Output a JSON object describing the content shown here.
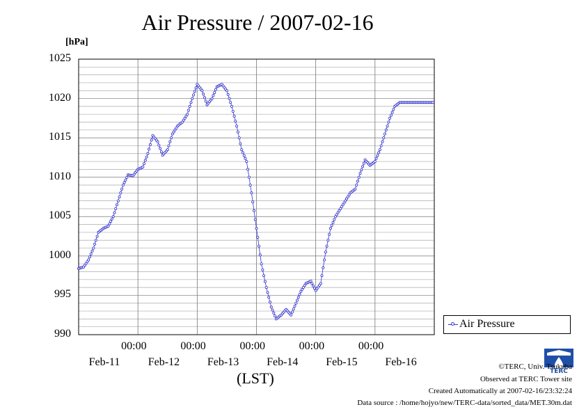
{
  "chart_data": {
    "type": "line",
    "title": "Air Pressure / 2007-02-16",
    "ylabel": "[hPa]",
    "xlabel": "(LST)",
    "ylim": [
      990,
      1025
    ],
    "y_ticks": [
      "1025",
      "1020",
      "1015",
      "1010",
      "1005",
      "1000",
      "995",
      "990"
    ],
    "x_time_ticks": [
      "00:00",
      "00:00",
      "00:00",
      "00:00",
      "00:00"
    ],
    "x_day_ticks": [
      "Feb-11",
      "Feb-12",
      "Feb-13",
      "Feb-14",
      "Feb-15",
      "Feb-16"
    ],
    "grid": true,
    "legend_position": "lower-right outside",
    "series": [
      {
        "name": "Air Pressure",
        "color": "#3333cc",
        "x_hours": [
          0,
          2,
          4,
          6,
          8,
          10,
          12,
          14,
          16,
          18,
          20,
          22,
          24,
          26,
          28,
          30,
          32,
          34,
          36,
          38,
          40,
          42,
          44,
          46,
          48,
          50,
          52,
          54,
          56,
          58,
          60,
          62,
          64,
          66,
          68,
          70,
          72,
          74,
          76,
          78,
          80,
          82,
          84,
          86,
          88,
          90,
          92,
          94,
          96,
          98,
          100,
          102,
          104,
          106,
          108,
          110,
          112,
          114,
          116,
          118,
          120,
          122,
          124,
          126,
          128,
          130,
          132,
          134,
          136,
          138,
          140,
          142,
          143.5
        ],
        "values": [
          998.4,
          998.6,
          999.5,
          1001.0,
          1003.0,
          1003.5,
          1003.8,
          1005.0,
          1007.0,
          1009.0,
          1010.3,
          1010.2,
          1011.0,
          1011.3,
          1013.0,
          1015.3,
          1014.5,
          1012.8,
          1013.5,
          1015.5,
          1016.5,
          1017.0,
          1018.0,
          1020.0,
          1021.8,
          1021.0,
          1019.2,
          1020.0,
          1021.5,
          1021.8,
          1021.0,
          1019.0,
          1016.5,
          1013.5,
          1012.0,
          1008.0,
          1003.5,
          999.0,
          996.0,
          993.5,
          992.0,
          992.5,
          993.2,
          992.5,
          994.0,
          995.5,
          996.5,
          996.8,
          995.6,
          996.5,
          1000.5,
          1003.5,
          1005.0,
          1006.0,
          1007.0,
          1008.0,
          1008.5,
          1010.5,
          1012.2,
          1011.5,
          1012.0,
          1013.5,
          1015.5,
          1017.5,
          1019.0,
          1019.5,
          1019.5,
          1019.5,
          1019.5,
          1019.5,
          1019.5,
          1019.5,
          1019.5
        ]
      }
    ]
  },
  "legend": {
    "label": "Air Pressure"
  },
  "footer": {
    "copyright": "©TERC, Univ. Tsukuba",
    "observed": "Observed at TERC Tower site",
    "created": "Created Automatically at 2007-02-16/23:32:24",
    "source": "Data source : /home/hojyo/new/TERC-data/sorted_data/MET.30m.dat"
  },
  "logo": {
    "text": "TERC"
  }
}
